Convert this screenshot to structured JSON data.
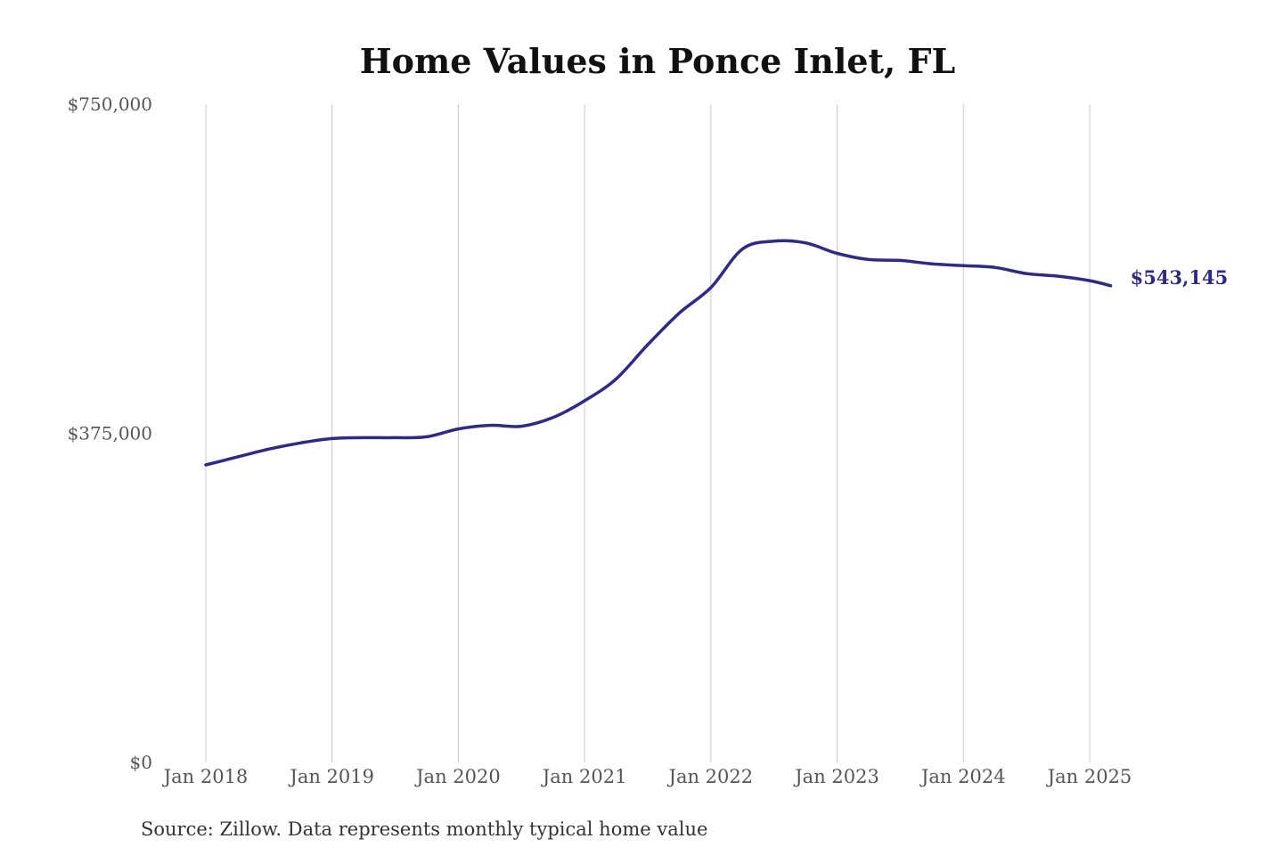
{
  "chart_data": {
    "type": "line",
    "title": "Home Values in Ponce Inlet, FL",
    "source_note": "Source: Zillow. Data represents monthly typical home value",
    "ylim": [
      0,
      750000
    ],
    "y_ticks": [
      {
        "value": 0,
        "label": "$0"
      },
      {
        "value": 375000,
        "label": "$375,000"
      },
      {
        "value": 750000,
        "label": "$750,000"
      }
    ],
    "x_range": [
      "2018-01",
      "2025-03"
    ],
    "x_ticks": [
      {
        "date": "2018-01",
        "label": "Jan 2018"
      },
      {
        "date": "2019-01",
        "label": "Jan 2019"
      },
      {
        "date": "2020-01",
        "label": "Jan 2020"
      },
      {
        "date": "2021-01",
        "label": "Jan 2021"
      },
      {
        "date": "2022-01",
        "label": "Jan 2022"
      },
      {
        "date": "2023-01",
        "label": "Jan 2023"
      },
      {
        "date": "2024-01",
        "label": "Jan 2024"
      },
      {
        "date": "2025-01",
        "label": "Jan 2025"
      }
    ],
    "grid": {
      "vertical": true,
      "horizontal": false
    },
    "line_color": "#2e2a86",
    "end_label": "$543,145",
    "series": [
      {
        "x": [
          "2018-01",
          "2018-04",
          "2018-07",
          "2018-10",
          "2019-01",
          "2019-04",
          "2019-07",
          "2019-10",
          "2020-01",
          "2020-04",
          "2020-07",
          "2020-10",
          "2021-01",
          "2021-04",
          "2021-07",
          "2021-10",
          "2022-01",
          "2022-04",
          "2022-07",
          "2022-10",
          "2023-01",
          "2023-04",
          "2023-07",
          "2023-10",
          "2024-01",
          "2024-04",
          "2024-07",
          "2024-10",
          "2025-01",
          "2025-03"
        ],
        "values": [
          339000,
          348000,
          357000,
          364000,
          369000,
          370000,
          370000,
          371000,
          380000,
          384000,
          383000,
          393000,
          412000,
          437000,
          476000,
          512000,
          541000,
          585000,
          594000,
          592000,
          580000,
          573000,
          572000,
          568000,
          566000,
          564000,
          557000,
          554000,
          549000,
          543145
        ]
      }
    ]
  }
}
